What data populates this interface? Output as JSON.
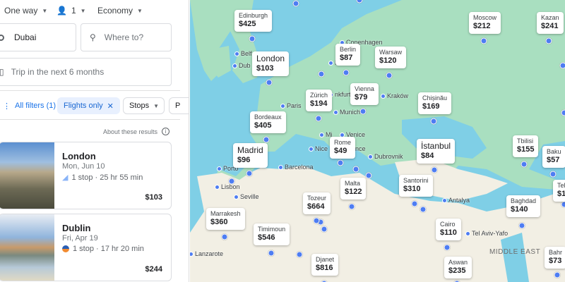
{
  "search": {
    "trip_type": "One way",
    "passengers": "1",
    "cabin": "Economy",
    "origin": "Dubai",
    "destination_placeholder": "Where to?",
    "dates": "Trip in the next 6 months"
  },
  "filters": {
    "all_filters": "All filters (1)",
    "flights_only": "Flights only",
    "stops": "Stops",
    "price_partial": "P"
  },
  "about": "About these results",
  "results": [
    {
      "city": "London",
      "date": "Mon, Jun 10",
      "details": "1 stop · 25 hr 55 min",
      "price": "$103"
    },
    {
      "city": "Dublin",
      "date": "Fri, Apr 19",
      "details": "1 stop · 17 hr 20 min",
      "price": "$244"
    }
  ],
  "map": {
    "prices": [
      {
        "name": "Edinburgh",
        "price": "$425"
      },
      {
        "name": "London",
        "price": "$103"
      },
      {
        "name": "Berlin",
        "price": "$87"
      },
      {
        "name": "Warsaw",
        "price": "$120"
      },
      {
        "name": "Moscow",
        "price": "$212"
      },
      {
        "name": "Kazan",
        "price": "$241"
      },
      {
        "name": "Zürich",
        "price": "$194"
      },
      {
        "name": "Vienna",
        "price": "$79"
      },
      {
        "name": "Bordeaux",
        "price": "$405"
      },
      {
        "name": "Chișinău",
        "price": "$169"
      },
      {
        "name": "Madrid",
        "price": "$96"
      },
      {
        "name": "Rome",
        "price": "$49"
      },
      {
        "name": "İstanbul",
        "price": "$84"
      },
      {
        "name": "Tbilisi",
        "price": "$155"
      },
      {
        "name": "Baku",
        "price": "$57"
      },
      {
        "name": "Tel",
        "price": "$1"
      },
      {
        "name": "Malta",
        "price": "$122"
      },
      {
        "name": "Santorini",
        "price": "$310"
      },
      {
        "name": "Tozeur",
        "price": "$664"
      },
      {
        "name": "Baghdad",
        "price": "$140"
      },
      {
        "name": "Marrakesh",
        "price": "$360"
      },
      {
        "name": "Timimoun",
        "price": "$546"
      },
      {
        "name": "Cairo",
        "price": "$110"
      },
      {
        "name": "Djanet",
        "price": "$816"
      },
      {
        "name": "Aswan",
        "price": "$235"
      },
      {
        "name": "Bahr",
        "price": "$73"
      }
    ],
    "cities": [
      "Copenhagen",
      "Belf",
      "Dub",
      "H",
      "nkfurt",
      "Paris",
      "Munich",
      "Kraków",
      "Mi",
      "Venice",
      "Nice",
      "nce",
      "Dubrovnik",
      "Porto",
      "Barcelona",
      "Lisbon",
      "Seville",
      "Antalya",
      "Tel Aviv-Yafo",
      "Lanzarote"
    ],
    "region": "MIDDLE EAST"
  }
}
